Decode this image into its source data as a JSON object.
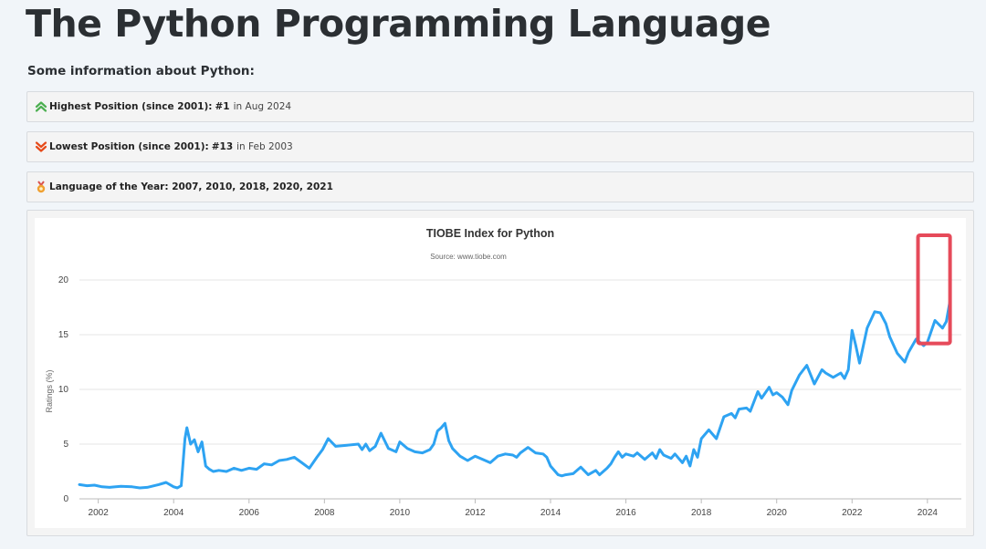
{
  "page": {
    "title": "The Python Programming Language",
    "info_heading": "Some information about Python:"
  },
  "info_rows": [
    {
      "icon": "double-chevron-up-icon",
      "icon_color": "#4caf50",
      "label": "Highest Position (since 2001):",
      "value": "#1",
      "suffix": "in Aug 2024"
    },
    {
      "icon": "double-chevron-down-icon",
      "icon_color": "#e64a19",
      "label": "Lowest Position (since 2001):",
      "value": "#13",
      "suffix": "in Feb 2003"
    },
    {
      "icon": "medal-icon",
      "icon_color": "#f0a030",
      "label": "Language of the Year: 2007, 2010, 2018, 2020, 2021",
      "value": "",
      "suffix": ""
    }
  ],
  "chart_data": {
    "type": "line",
    "title": "TIOBE Index for Python",
    "subtitle": "Source: www.tiobe.com",
    "ylabel": "Ratings (%)",
    "xlabel": "",
    "xlim": [
      2001.5,
      2024.9
    ],
    "ylim": [
      0,
      20
    ],
    "x_ticks": [
      2002,
      2004,
      2006,
      2008,
      2010,
      2012,
      2014,
      2016,
      2018,
      2020,
      2022,
      2024
    ],
    "y_ticks": [
      0,
      5,
      10,
      15,
      20
    ],
    "grid": "horizontal",
    "line_color": "#2ea3f2",
    "highlight_color": "#e64a5a",
    "highlight_x_range": [
      2023.75,
      2024.6
    ],
    "highlight_y_range": [
      14.2,
      24
    ],
    "series": [
      {
        "x": [
          2001.5,
          2001.7,
          2001.9,
          2002.1,
          2002.3,
          2002.6,
          2002.9,
          2003.1,
          2003.3,
          2003.6,
          2003.8,
          2004.0,
          2004.1,
          2004.2,
          2004.3,
          2004.35,
          2004.45,
          2004.55,
          2004.65,
          2004.75,
          2004.85,
          2004.95,
          2005.05,
          2005.2,
          2005.4,
          2005.6,
          2005.8,
          2006.0,
          2006.2,
          2006.4,
          2006.6,
          2006.8,
          2007.0,
          2007.2,
          2007.4,
          2007.6,
          2007.8,
          2007.95,
          2008.1,
          2008.3,
          2008.6,
          2008.9,
          2009.0,
          2009.1,
          2009.2,
          2009.35,
          2009.5,
          2009.7,
          2009.9,
          2010.0,
          2010.2,
          2010.4,
          2010.6,
          2010.8,
          2010.9,
          2011.0,
          2011.1,
          2011.2,
          2011.3,
          2011.4,
          2011.6,
          2011.8,
          2012.0,
          2012.2,
          2012.4,
          2012.6,
          2012.8,
          2013.0,
          2013.1,
          2013.2,
          2013.4,
          2013.6,
          2013.8,
          2013.9,
          2014.0,
          2014.2,
          2014.3,
          2014.4,
          2014.6,
          2014.8,
          2015.0,
          2015.2,
          2015.3,
          2015.5,
          2015.6,
          2015.7,
          2015.8,
          2015.9,
          2016.0,
          2016.2,
          2016.3,
          2016.5,
          2016.7,
          2016.8,
          2016.9,
          2017.0,
          2017.2,
          2017.3,
          2017.5,
          2017.6,
          2017.7,
          2017.8,
          2017.9,
          2018.0,
          2018.2,
          2018.4,
          2018.6,
          2018.8,
          2018.9,
          2019.0,
          2019.2,
          2019.3,
          2019.5,
          2019.6,
          2019.8,
          2019.9,
          2020.0,
          2020.15,
          2020.3,
          2020.4,
          2020.6,
          2020.8,
          2021.0,
          2021.2,
          2021.3,
          2021.5,
          2021.7,
          2021.8,
          2021.9,
          2022.0,
          2022.1,
          2022.2,
          2022.4,
          2022.6,
          2022.75,
          2022.9,
          2023.0,
          2023.2,
          2023.4,
          2023.5,
          2023.7,
          2023.8,
          2023.9,
          2024.0,
          2024.2,
          2024.4,
          2024.5,
          2024.6
        ],
        "y": [
          1.3,
          1.2,
          1.25,
          1.1,
          1.05,
          1.15,
          1.1,
          1.0,
          1.05,
          1.3,
          1.5,
          1.1,
          1.0,
          1.2,
          5.5,
          6.5,
          5.0,
          5.4,
          4.3,
          5.2,
          3.0,
          2.7,
          2.5,
          2.6,
          2.5,
          2.8,
          2.6,
          2.8,
          2.7,
          3.2,
          3.1,
          3.5,
          3.6,
          3.8,
          3.3,
          2.8,
          3.8,
          4.5,
          5.5,
          4.8,
          4.9,
          5.0,
          4.5,
          5.0,
          4.4,
          4.8,
          6.0,
          4.6,
          4.3,
          5.2,
          4.6,
          4.3,
          4.2,
          4.5,
          5.0,
          6.2,
          6.5,
          6.9,
          5.3,
          4.6,
          3.9,
          3.5,
          3.9,
          3.6,
          3.3,
          3.9,
          4.1,
          4.0,
          3.8,
          4.2,
          4.7,
          4.2,
          4.1,
          3.8,
          3.0,
          2.2,
          2.1,
          2.2,
          2.3,
          2.9,
          2.2,
          2.6,
          2.2,
          2.8,
          3.2,
          3.8,
          4.3,
          3.8,
          4.1,
          3.9,
          4.2,
          3.6,
          4.2,
          3.7,
          4.5,
          4.0,
          3.7,
          4.1,
          3.3,
          3.9,
          3.0,
          4.5,
          3.8,
          5.5,
          6.3,
          5.5,
          7.5,
          7.8,
          7.4,
          8.2,
          8.3,
          8.0,
          9.8,
          9.2,
          10.2,
          9.5,
          9.7,
          9.3,
          8.6,
          9.9,
          11.3,
          12.2,
          10.5,
          11.8,
          11.5,
          11.1,
          11.5,
          11.0,
          11.8,
          15.4,
          14.0,
          12.4,
          15.6,
          17.1,
          17.0,
          16.0,
          14.8,
          13.3,
          12.5,
          13.4,
          14.6,
          14.3,
          14.0,
          14.3,
          16.3,
          15.6,
          16.2,
          18.1
        ]
      }
    ]
  }
}
